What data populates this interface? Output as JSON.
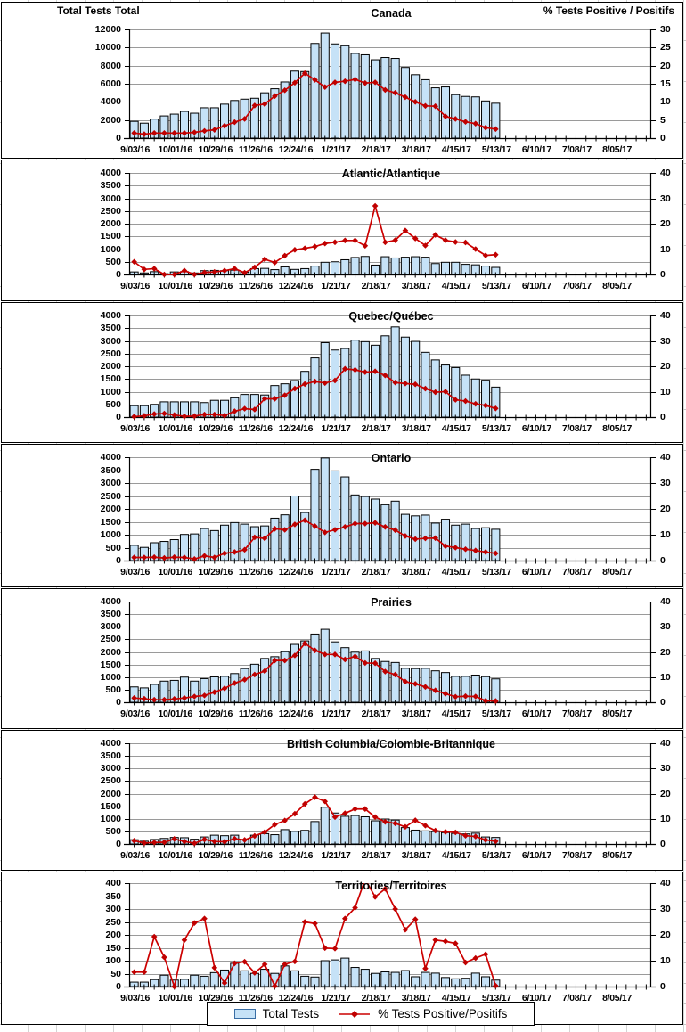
{
  "header": {
    "left_axis_title": "Total Tests Total",
    "right_axis_title": "% Tests Positive / Positifs"
  },
  "legend": {
    "bar_label": "Total Tests",
    "line_label": "% Tests Positive/Positifs"
  },
  "colors": {
    "bar_fill": "#c6e2f7",
    "bar_border": "#000000",
    "line": "#cc0000",
    "marker": "#c00000",
    "grid": "#9a9a9a",
    "axis": "#000000"
  },
  "x_axis": {
    "total_slots": 52,
    "tick_labels": [
      "9/03/16",
      "10/01/16",
      "10/29/16",
      "11/26/16",
      "12/24/16",
      "1/21/17",
      "2/18/17",
      "3/18/17",
      "4/15/17",
      "5/13/17",
      "6/10/17",
      "7/08/17",
      "8/05/17"
    ],
    "weeks": [
      "9/03/16",
      "9/10/16",
      "9/17/16",
      "9/24/16",
      "10/01/16",
      "10/08/16",
      "10/15/16",
      "10/22/16",
      "10/29/16",
      "11/05/16",
      "11/12/16",
      "11/19/16",
      "11/26/16",
      "12/03/16",
      "12/10/16",
      "12/17/16",
      "12/24/16",
      "12/31/16",
      "1/07/17",
      "1/14/17",
      "1/21/17",
      "1/28/17",
      "2/04/17",
      "2/11/17",
      "2/18/17",
      "2/25/17",
      "3/04/17",
      "3/11/17",
      "3/18/17",
      "3/25/17",
      "4/01/17",
      "4/08/17",
      "4/15/17",
      "4/22/17",
      "4/29/17",
      "5/06/17",
      "5/13/17"
    ]
  },
  "chart_data": [
    {
      "type": "bar",
      "title": "Canada",
      "y_left": {
        "min": 0,
        "max": 12000,
        "grid_step": 2000,
        "label_step": 2000
      },
      "y_right": {
        "min": 0,
        "max": 30,
        "label_step": 5
      },
      "series": [
        {
          "name": "Total Tests",
          "type": "bar",
          "values": [
            1850,
            1650,
            2100,
            2450,
            2650,
            2950,
            2750,
            3350,
            3350,
            3750,
            4150,
            4300,
            4400,
            5000,
            5450,
            6200,
            7400,
            7350,
            10450,
            11600,
            10400,
            10200,
            9350,
            9200,
            8650,
            8900,
            8800,
            7800,
            7000,
            6450,
            5550,
            5650,
            4800,
            4600,
            4550,
            4100,
            3850
          ]
        },
        {
          "name": "% Tests Positive/Positifs",
          "type": "line",
          "values": [
            1.4,
            1.1,
            1.4,
            1.4,
            1.4,
            1.4,
            1.6,
            2.0,
            2.3,
            3.4,
            4.4,
            5.3,
            9.0,
            9.4,
            11.6,
            13.2,
            15.3,
            17.9,
            16.1,
            14.1,
            15.4,
            15.7,
            16.2,
            15.2,
            15.4,
            13.3,
            12.5,
            11.3,
            10.0,
            8.9,
            8.8,
            6.0,
            5.3,
            4.5,
            4.0,
            2.9,
            2.5
          ]
        }
      ]
    },
    {
      "type": "bar",
      "title": "Atlantic/Atlantique",
      "y_left": {
        "min": 0,
        "max": 4000,
        "grid_step": 500,
        "label_step": 500
      },
      "y_right": {
        "min": 0,
        "max": 40,
        "label_step": 10
      },
      "series": [
        {
          "name": "Total Tests",
          "type": "bar",
          "values": [
            100,
            60,
            110,
            30,
            100,
            110,
            60,
            150,
            160,
            150,
            170,
            90,
            230,
            240,
            190,
            300,
            200,
            230,
            330,
            480,
            500,
            580,
            670,
            710,
            370,
            700,
            650,
            680,
            700,
            680,
            430,
            480,
            480,
            400,
            380,
            330,
            280
          ]
        },
        {
          "name": "% Tests Positive/Positifs",
          "type": "line",
          "values": [
            5,
            2,
            2.3,
            0,
            0,
            1.5,
            0,
            0.8,
            1,
            1.5,
            2.3,
            0.7,
            2.8,
            6,
            4.7,
            7.4,
            9.7,
            10.3,
            11,
            12.2,
            12.7,
            13.4,
            13.4,
            11.3,
            27,
            12.7,
            13.5,
            17.3,
            14.2,
            11.4,
            15.6,
            13.5,
            12.8,
            12.6,
            10,
            7.5,
            7.8
          ]
        }
      ]
    },
    {
      "type": "bar",
      "title": "Quebec/Québec",
      "y_left": {
        "min": 0,
        "max": 4000,
        "grid_step": 500,
        "label_step": 500
      },
      "y_right": {
        "min": 0,
        "max": 40,
        "label_step": 10
      },
      "series": [
        {
          "name": "Total Tests",
          "type": "bar",
          "values": [
            450,
            450,
            500,
            600,
            600,
            600,
            600,
            570,
            660,
            660,
            760,
            890,
            890,
            870,
            1240,
            1310,
            1440,
            1800,
            2330,
            2930,
            2640,
            2700,
            3030,
            2970,
            2830,
            3200,
            3550,
            3150,
            2980,
            2550,
            2250,
            2050,
            1950,
            1650,
            1500,
            1450,
            1180
          ]
        },
        {
          "name": "% Tests Positive/Positifs",
          "type": "line",
          "values": [
            0.2,
            0.5,
            1.2,
            1.4,
            0.8,
            0.3,
            0.4,
            1.0,
            1.0,
            0.6,
            2.3,
            3.3,
            3.0,
            7.2,
            7.2,
            8.6,
            11.2,
            13.0,
            14.0,
            13.4,
            14.4,
            19.0,
            18.6,
            17.7,
            18.0,
            16.4,
            13.6,
            13.2,
            12.9,
            11.2,
            9.8,
            10.0,
            6.8,
            6.3,
            5.2,
            4.6,
            3.4
          ]
        }
      ]
    },
    {
      "type": "bar",
      "title": "Ontario",
      "y_left": {
        "min": 0,
        "max": 4000,
        "grid_step": 500,
        "label_step": 500
      },
      "y_right": {
        "min": 0,
        "max": 40,
        "label_step": 10
      },
      "series": [
        {
          "name": "Total Tests",
          "type": "bar",
          "values": [
            590,
            510,
            690,
            740,
            810,
            1010,
            1030,
            1240,
            1160,
            1370,
            1470,
            1410,
            1310,
            1340,
            1640,
            1770,
            2500,
            1860,
            3530,
            3970,
            3470,
            3240,
            2540,
            2480,
            2380,
            2160,
            2300,
            1790,
            1730,
            1760,
            1450,
            1600,
            1370,
            1410,
            1240,
            1270,
            1210
          ]
        },
        {
          "name": "% Tests Positive/Positifs",
          "type": "line",
          "values": [
            1.2,
            1.2,
            1.3,
            1.0,
            1.3,
            1.2,
            0.6,
            1.8,
            1.2,
            2.8,
            3.3,
            4.2,
            9.0,
            8.6,
            12.3,
            11.9,
            14.0,
            15.6,
            13.3,
            10.9,
            11.9,
            13.0,
            14.3,
            14.3,
            14.6,
            13.0,
            11.8,
            9.5,
            8.3,
            8.6,
            8.7,
            5.6,
            5.0,
            4.4,
            3.9,
            3.3,
            2.8
          ]
        }
      ]
    },
    {
      "type": "bar",
      "title": "Prairies",
      "y_left": {
        "min": 0,
        "max": 4000,
        "grid_step": 500,
        "label_step": 500
      },
      "y_right": {
        "min": 0,
        "max": 40,
        "label_step": 10
      },
      "series": [
        {
          "name": "Total Tests",
          "type": "bar",
          "values": [
            610,
            570,
            710,
            840,
            870,
            1000,
            840,
            940,
            1010,
            1030,
            1140,
            1340,
            1510,
            1740,
            1810,
            2010,
            2300,
            2440,
            2710,
            2900,
            2400,
            2170,
            1990,
            2040,
            1740,
            1620,
            1580,
            1350,
            1340,
            1350,
            1250,
            1180,
            1030,
            1030,
            1080,
            1020,
            930
          ]
        },
        {
          "name": "% Tests Positive/Positifs",
          "type": "line",
          "values": [
            1.7,
            1.4,
            1.0,
            1.0,
            1.3,
            1.7,
            2.3,
            2.7,
            4.0,
            5.5,
            7.6,
            9.0,
            11.0,
            12.4,
            16.6,
            16.6,
            18.6,
            23.4,
            20.6,
            19.0,
            19.0,
            17.0,
            18.2,
            15.6,
            15.5,
            12.2,
            11.0,
            8.2,
            7.3,
            6.1,
            4.7,
            3.4,
            2.2,
            2.4,
            2.3,
            0.6,
            0.5
          ]
        }
      ]
    },
    {
      "type": "bar",
      "title": "British Columbia/Colombie-Britannique",
      "y_left": {
        "min": 0,
        "max": 4000,
        "grid_step": 500,
        "label_step": 500
      },
      "y_right": {
        "min": 0,
        "max": 40,
        "label_step": 10
      },
      "series": [
        {
          "name": "Total Tests",
          "type": "bar",
          "values": [
            170,
            110,
            180,
            220,
            260,
            250,
            190,
            280,
            350,
            330,
            350,
            180,
            350,
            410,
            370,
            570,
            500,
            540,
            890,
            1460,
            1230,
            1100,
            1130,
            1080,
            920,
            990,
            950,
            650,
            550,
            520,
            490,
            450,
            420,
            400,
            430,
            280,
            260
          ]
        },
        {
          "name": "% Tests Positive/Positifs",
          "type": "line",
          "values": [
            1.3,
            0.4,
            0.6,
            0.7,
            2.0,
            1.0,
            0.3,
            1.8,
            1.0,
            0.9,
            2.1,
            1.6,
            3.2,
            4.7,
            7.7,
            9.3,
            12.0,
            15.9,
            18.6,
            16.9,
            10.7,
            12.2,
            13.9,
            13.9,
            10.7,
            8.8,
            8.2,
            6.8,
            9.4,
            7.3,
            5.3,
            4.8,
            4.6,
            3.3,
            3.0,
            1.6,
            1.1
          ]
        }
      ]
    },
    {
      "type": "bar",
      "title": "Territories/Territoires",
      "y_left": {
        "min": 0,
        "max": 400,
        "grid_step": 50,
        "label_step": 50
      },
      "y_right": {
        "min": 0,
        "max": 40,
        "label_step": 10
      },
      "series": [
        {
          "name": "Total Tests",
          "type": "bar",
          "values": [
            17,
            17,
            27,
            44,
            25,
            28,
            44,
            40,
            54,
            64,
            90,
            61,
            51,
            67,
            51,
            80,
            61,
            40,
            37,
            100,
            103,
            110,
            74,
            67,
            51,
            57,
            55,
            62,
            38,
            55,
            52,
            35,
            30,
            32,
            52,
            38,
            25
          ]
        },
        {
          "name": "% Tests Positive/Positifs",
          "type": "line",
          "values": [
            5.6,
            5.6,
            19.3,
            11.3,
            0,
            18,
            24.6,
            26.3,
            7.3,
            1.4,
            9,
            9.6,
            5.3,
            8.6,
            0.2,
            8.6,
            9.7,
            25,
            24.4,
            14.9,
            14.7,
            26.3,
            30.5,
            41.5,
            34.7,
            37.8,
            30,
            22,
            26,
            7,
            18,
            17.5,
            16.7,
            9.3,
            11,
            12.5,
            0.3
          ]
        }
      ]
    }
  ]
}
